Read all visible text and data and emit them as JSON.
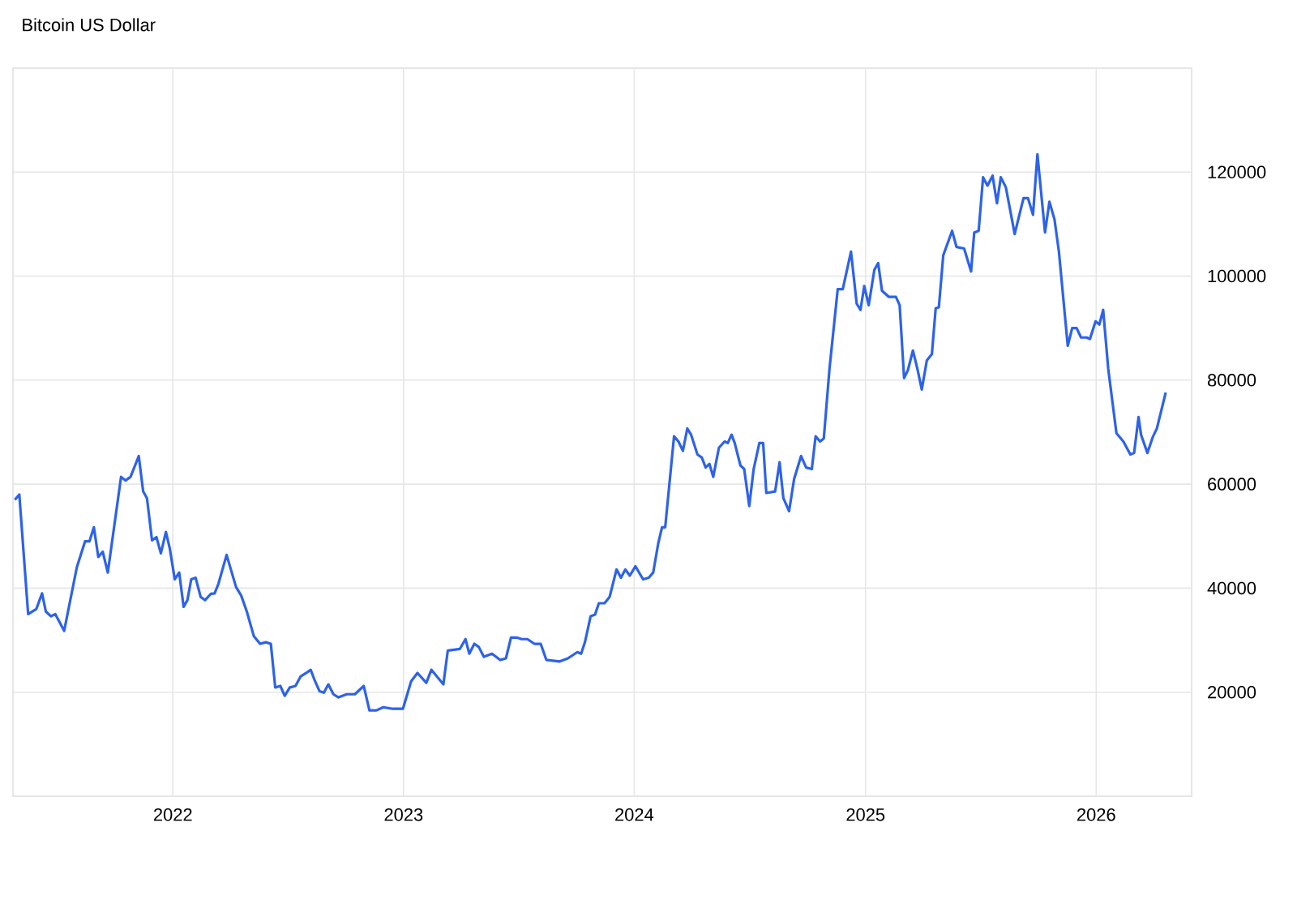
{
  "chart_data": {
    "type": "line",
    "title": "Bitcoin US Dollar",
    "color": "#2d62ea",
    "grid": true,
    "xlim": [
      "2021-04-23",
      "2026-06-01"
    ],
    "xticks": [
      "2022",
      "2023",
      "2024",
      "2025",
      "2026"
    ],
    "ylim": [
      0,
      140000
    ],
    "yticks": [
      20000,
      40000,
      60000,
      80000,
      100000,
      120000
    ],
    "x": [
      "2021-04-26",
      "2021-05-03",
      "2021-05-17",
      "2021-05-30",
      "2021-06-08",
      "2021-06-14",
      "2021-06-22",
      "2021-06-29",
      "2021-07-13",
      "2021-08-02",
      "2021-08-15",
      "2021-08-22",
      "2021-08-29",
      "2021-09-05",
      "2021-09-12",
      "2021-09-20",
      "2021-10-11",
      "2021-10-18",
      "2021-10-26",
      "2021-11-08",
      "2021-11-15",
      "2021-11-21",
      "2021-11-29",
      "2021-12-06",
      "2021-12-13",
      "2021-12-21",
      "2021-12-27",
      "2022-01-04",
      "2022-01-11",
      "2022-01-18",
      "2022-01-24",
      "2022-01-30",
      "2022-02-06",
      "2022-02-14",
      "2022-02-21",
      "2022-03-02",
      "2022-03-08",
      "2022-03-14",
      "2022-03-27",
      "2022-04-11",
      "2022-04-19",
      "2022-04-28",
      "2022-05-09",
      "2022-05-19",
      "2022-05-28",
      "2022-06-05",
      "2022-06-12",
      "2022-06-20",
      "2022-06-27",
      "2022-07-05",
      "2022-07-14",
      "2022-07-22",
      "2022-07-31",
      "2022-08-07",
      "2022-08-13",
      "2022-08-21",
      "2022-08-28",
      "2022-09-04",
      "2022-09-12",
      "2022-09-20",
      "2022-10-03",
      "2022-10-16",
      "2022-10-30",
      "2022-11-08",
      "2022-11-19",
      "2022-11-30",
      "2022-12-15",
      "2022-12-31",
      "2023-01-13",
      "2023-01-23",
      "2023-02-06",
      "2023-02-14",
      "2023-03-05",
      "2023-03-12",
      "2023-03-31",
      "2023-04-09",
      "2023-04-15",
      "2023-04-23",
      "2023-04-30",
      "2023-05-08",
      "2023-05-21",
      "2023-06-03",
      "2023-06-12",
      "2023-06-20",
      "2023-06-29",
      "2023-07-07",
      "2023-07-16",
      "2023-07-27",
      "2023-08-06",
      "2023-08-15",
      "2023-09-05",
      "2023-09-18",
      "2023-10-03",
      "2023-10-09",
      "2023-10-15",
      "2023-10-24",
      "2023-10-31",
      "2023-11-06",
      "2023-11-15",
      "2023-11-23",
      "2023-12-04",
      "2023-12-11",
      "2023-12-18",
      "2023-12-25",
      "2024-01-03",
      "2024-01-15",
      "2024-01-24",
      "2024-01-31",
      "2024-02-08",
      "2024-02-14",
      "2024-02-19",
      "2024-03-04",
      "2024-03-11",
      "2024-03-18",
      "2024-03-25",
      "2024-03-31",
      "2024-04-10",
      "2024-04-17",
      "2024-04-23",
      "2024-04-29",
      "2024-05-05",
      "2024-05-14",
      "2024-05-23",
      "2024-05-28",
      "2024-06-03",
      "2024-06-08",
      "2024-06-17",
      "2024-06-23",
      "2024-07-01",
      "2024-07-08",
      "2024-07-17",
      "2024-07-23",
      "2024-07-28",
      "2024-08-11",
      "2024-08-18",
      "2024-08-24",
      "2024-09-02",
      "2024-09-10",
      "2024-09-21",
      "2024-09-29",
      "2024-10-08",
      "2024-10-14",
      "2024-10-21",
      "2024-10-27",
      "2024-11-05",
      "2024-11-18",
      "2024-11-26",
      "2024-12-09",
      "2024-12-18",
      "2024-12-24",
      "2024-12-30",
      "2025-01-06",
      "2025-01-15",
      "2025-01-21",
      "2025-01-27",
      "2025-02-07",
      "2025-02-18",
      "2025-02-24",
      "2025-03-03",
      "2025-03-09",
      "2025-03-17",
      "2025-03-24",
      "2025-03-31",
      "2025-04-08",
      "2025-04-16",
      "2025-04-22",
      "2025-04-27",
      "2025-05-04",
      "2025-05-18",
      "2025-05-25",
      "2025-06-06",
      "2025-06-17",
      "2025-06-22",
      "2025-06-29",
      "2025-07-06",
      "2025-07-13",
      "2025-07-21",
      "2025-07-28",
      "2025-08-03",
      "2025-08-11",
      "2025-08-25",
      "2025-09-08",
      "2025-09-15",
      "2025-09-23",
      "2025-09-30",
      "2025-10-12",
      "2025-10-19",
      "2025-10-27",
      "2025-11-03",
      "2025-11-17",
      "2025-11-24",
      "2025-12-01",
      "2025-12-08",
      "2025-12-17",
      "2025-12-22",
      "2025-12-31",
      "2026-01-06",
      "2026-01-12",
      "2026-01-20",
      "2026-02-02",
      "2026-02-13",
      "2026-02-24",
      "2026-03-02",
      "2026-03-09",
      "2026-03-13",
      "2026-03-23",
      "2026-04-01",
      "2026-04-07",
      "2026-04-21"
    ],
    "values": [
      57000,
      58000,
      35000,
      36000,
      39000,
      35500,
      34600,
      35000,
      31800,
      44000,
      49000,
      49000,
      51700,
      46000,
      47000,
      43000,
      61400,
      60700,
      61400,
      65400,
      58600,
      57300,
      49200,
      49800,
      46700,
      50800,
      47700,
      41700,
      43000,
      36400,
      37700,
      41700,
      42000,
      38300,
      37700,
      38900,
      39000,
      40800,
      46400,
      40200,
      38600,
      35500,
      30800,
      29300,
      29600,
      29300,
      20900,
      21200,
      19300,
      20900,
      21200,
      23000,
      23700,
      24300,
      22400,
      20200,
      19900,
      21500,
      19600,
      19000,
      19600,
      19600,
      21200,
      16500,
      16500,
      17100,
      16800,
      16800,
      22100,
      23700,
      21800,
      24300,
      21500,
      28000,
      28300,
      30200,
      27400,
      29300,
      28700,
      26800,
      27400,
      26200,
      26500,
      30500,
      30500,
      30200,
      30200,
      29300,
      29300,
      26200,
      25900,
      26500,
      27700,
      27400,
      29600,
      34600,
      34900,
      37100,
      37100,
      38300,
      43600,
      42000,
      43600,
      42400,
      44200,
      41700,
      42000,
      43000,
      48600,
      51700,
      51700,
      69200,
      68200,
      66400,
      70700,
      69500,
      65700,
      65100,
      63200,
      63900,
      61400,
      67000,
      68200,
      67900,
      69500,
      67900,
      63600,
      62900,
      55800,
      62900,
      67900,
      67900,
      58300,
      58600,
      64200,
      57300,
      54800,
      61000,
      65400,
      63200,
      62900,
      69200,
      68200,
      68800,
      82200,
      97500,
      97500,
      104700,
      94700,
      93500,
      98100,
      94400,
      101200,
      102500,
      97200,
      96000,
      96000,
      94400,
      80400,
      81900,
      85700,
      82200,
      78200,
      83800,
      85000,
      93800,
      94000,
      104000,
      108700,
      105600,
      105300,
      100900,
      108400,
      108700,
      119000,
      117400,
      119300,
      114000,
      119000,
      117100,
      108100,
      115000,
      115000,
      111800,
      123400,
      108400,
      114300,
      110900,
      104700,
      86600,
      90000,
      90000,
      88200,
      88200,
      87900,
      91300,
      90700,
      93500,
      82200,
      69800,
      68200,
      65700,
      66000,
      72900,
      69500,
      66000,
      69200,
      70700,
      77600
    ]
  }
}
